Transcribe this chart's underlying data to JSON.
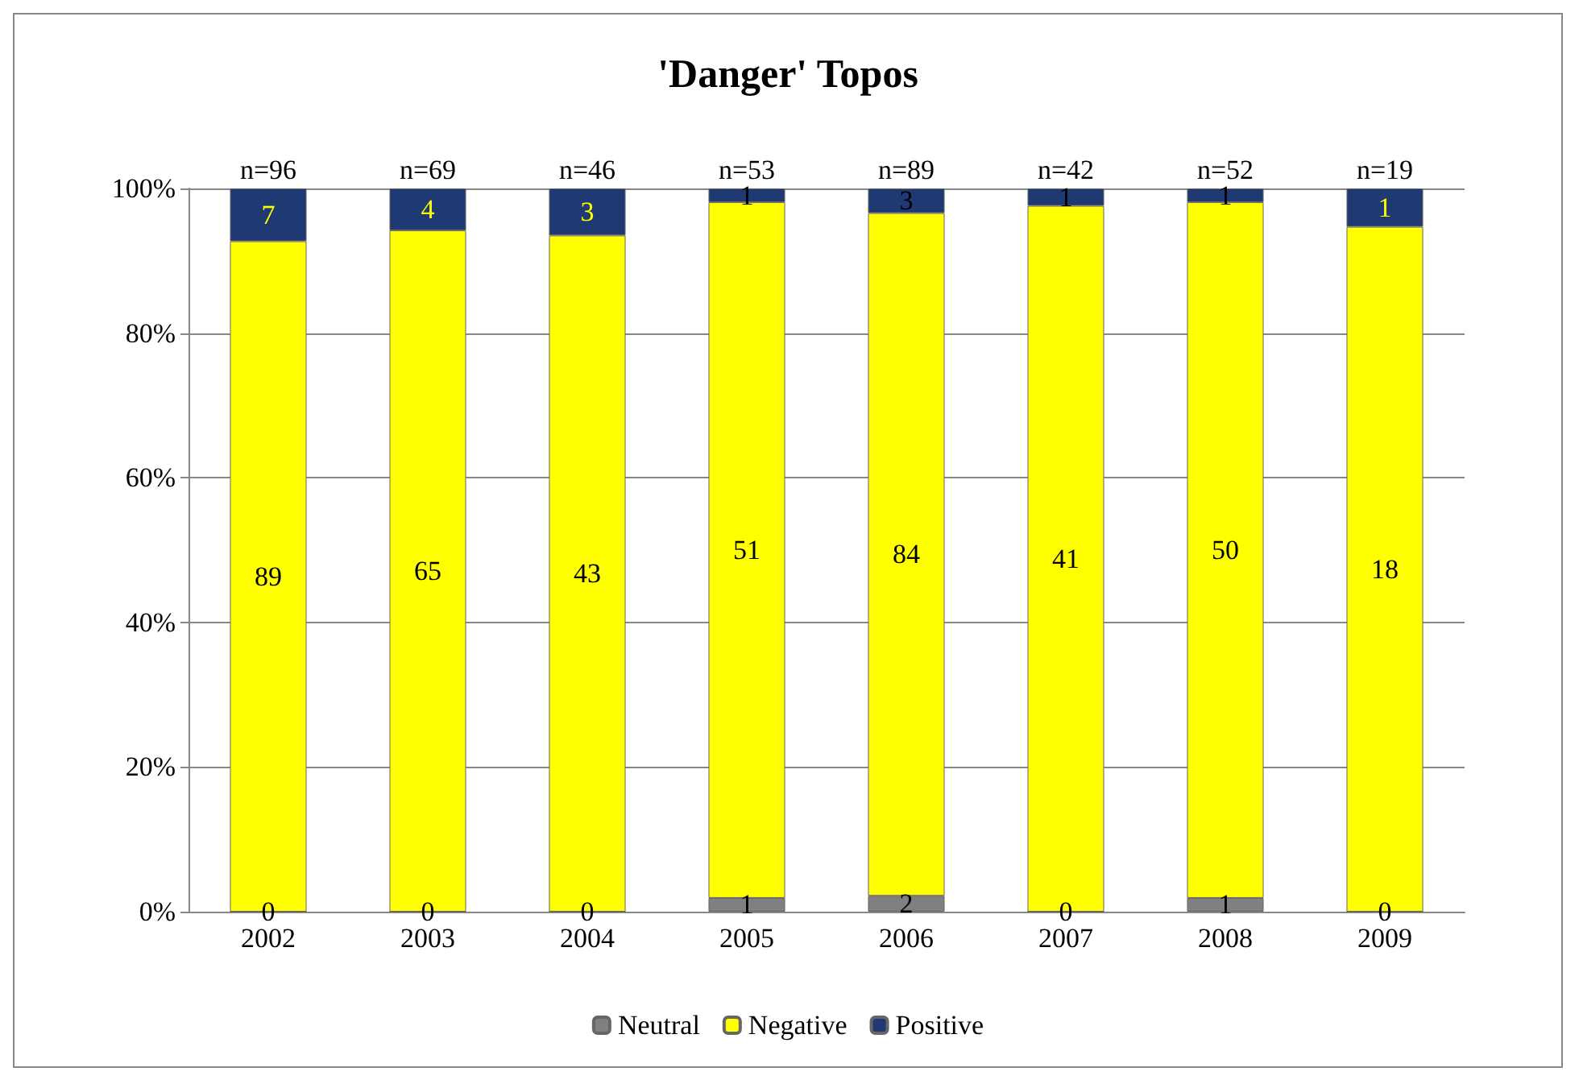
{
  "chart_data": {
    "type": "bar",
    "title": "'Danger' Topos",
    "stacked": true,
    "categories": [
      "2002",
      "2003",
      "2004",
      "2005",
      "2006",
      "2007",
      "2008",
      "2009"
    ],
    "series": [
      {
        "name": "Neutral",
        "color": "#808080",
        "values": [
          0,
          0,
          0,
          1.9,
          2.2,
          0,
          1.9,
          0
        ]
      },
      {
        "name": "Negative",
        "color": "#ffff00",
        "values": [
          92.7,
          94.2,
          93.5,
          96.2,
          94.4,
          97.6,
          96.2,
          94.7
        ]
      },
      {
        "name": "Positive",
        "color": "#1f3a73",
        "values": [
          7.3,
          5.8,
          6.5,
          1.9,
          3.4,
          2.4,
          1.9,
          5.3
        ]
      }
    ],
    "annotations": [
      "n=96",
      "0",
      "89",
      "7",
      "n=69",
      "0",
      "65",
      "4",
      "n=46",
      "0",
      "43",
      "3",
      "n=53",
      "1",
      "51",
      "1",
      "n=89",
      "2",
      "84",
      "3",
      "n=42",
      "0",
      "41",
      "1",
      "n=52",
      "1",
      "50",
      "1",
      "n=19",
      "0",
      "18",
      "1"
    ],
    "ylim": [
      0,
      100
    ],
    "yticks": [
      {
        "value": 0,
        "label": "0%"
      },
      {
        "value": 20,
        "label": "20%"
      },
      {
        "value": 40,
        "label": "40%"
      },
      {
        "value": 60,
        "label": "60%"
      },
      {
        "value": 80,
        "label": "80%"
      },
      {
        "value": 100,
        "label": "100%"
      }
    ],
    "grid": "y",
    "legend": "bottom"
  }
}
